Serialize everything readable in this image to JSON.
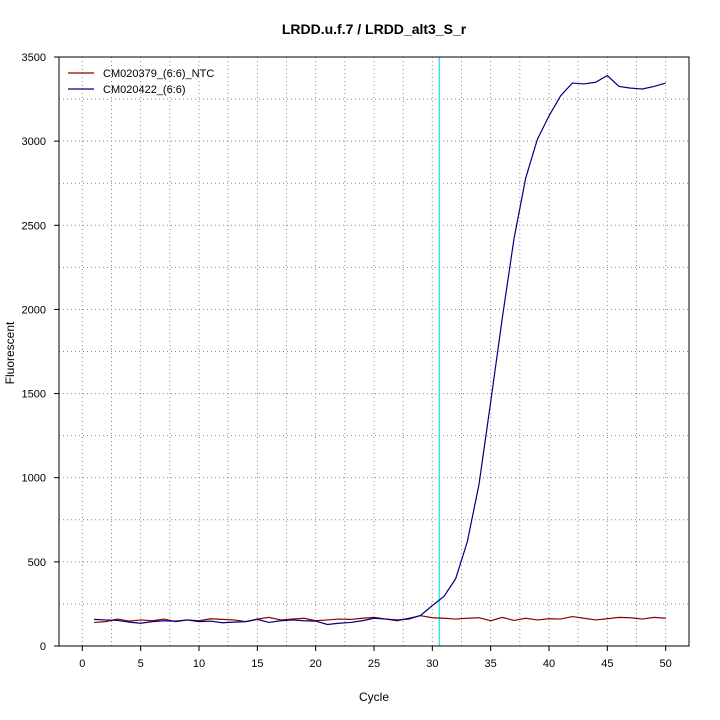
{
  "chart_data": {
    "type": "line",
    "title": "LRDD.u.f.7 / LRDD_alt3_S_r",
    "xlabel": "Cycle",
    "ylabel": "Fluorescent",
    "xlim": [
      -2,
      52
    ],
    "ylim": [
      0,
      3500
    ],
    "x_ticks": [
      0,
      5,
      10,
      15,
      20,
      25,
      30,
      35,
      40,
      45,
      50
    ],
    "y_ticks": [
      0,
      500,
      1000,
      1500,
      2000,
      2500,
      3000,
      3500
    ],
    "grid": true,
    "threshold_x": 30.6,
    "legend_position": "top-left",
    "x": [
      1,
      2,
      3,
      4,
      5,
      6,
      7,
      8,
      9,
      10,
      11,
      12,
      13,
      14,
      15,
      16,
      17,
      18,
      19,
      20,
      21,
      22,
      23,
      24,
      25,
      26,
      27,
      28,
      29,
      30,
      31,
      32,
      33,
      34,
      35,
      36,
      37,
      38,
      39,
      40,
      41,
      42,
      43,
      44,
      45,
      46,
      47,
      48,
      49,
      50
    ],
    "series": [
      {
        "name": "CM020379_(6:6)_NTC",
        "color": "#8b0000",
        "values": [
          140,
          145,
          160,
          148,
          155,
          150,
          160,
          145,
          155,
          150,
          162,
          158,
          155,
          145,
          160,
          170,
          155,
          160,
          165,
          150,
          155,
          160,
          158,
          165,
          170,
          160,
          150,
          165,
          180,
          168,
          165,
          160,
          165,
          168,
          150,
          170,
          152,
          165,
          155,
          162,
          160,
          175,
          165,
          155,
          162,
          170,
          168,
          160,
          170,
          165
        ]
      },
      {
        "name": "CM020422_(6:6)",
        "color": "#000080",
        "values": [
          158,
          155,
          152,
          142,
          135,
          145,
          150,
          148,
          155,
          145,
          148,
          138,
          142,
          145,
          158,
          140,
          150,
          155,
          150,
          148,
          128,
          135,
          140,
          150,
          165,
          160,
          155,
          160,
          182,
          240,
          295,
          400,
          620,
          960,
          1450,
          1950,
          2420,
          2780,
          3010,
          3150,
          3270,
          3345,
          3340,
          3350,
          3390,
          3325,
          3315,
          3310,
          3325,
          3345
        ]
      }
    ]
  }
}
